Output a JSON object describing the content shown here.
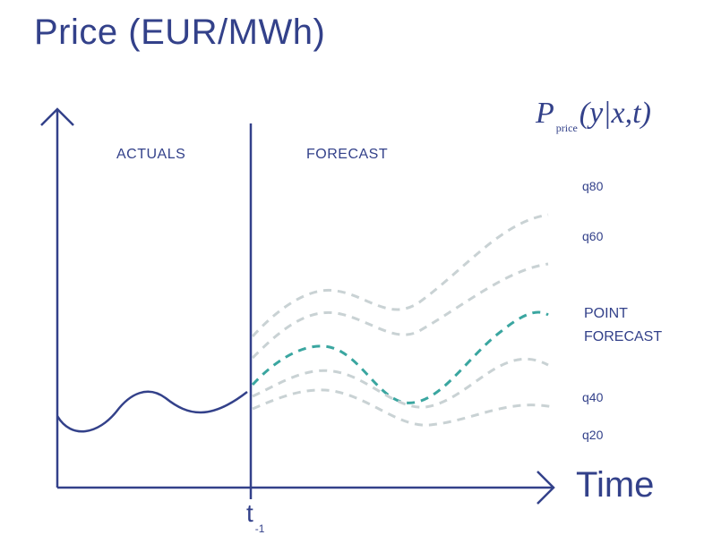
{
  "title": "Price (EUR/MWh)",
  "formula": {
    "main": "P",
    "sub": "price",
    "args": "(y|x,t)"
  },
  "regions": {
    "actuals": "ACTUALS",
    "forecast": "FORECAST"
  },
  "axes": {
    "x_label": "Time",
    "split_label": "t",
    "split_sub": "-1"
  },
  "quantiles": {
    "q80": "q80",
    "q60": "q60",
    "point_line1": "POINT",
    "point_line2": "FORECAST",
    "q40": "q40",
    "q20": "q20"
  },
  "colors": {
    "axis": "#33418a",
    "quantile_band": "#c9d8d8",
    "point_forecast": "#3aa6a0"
  }
}
